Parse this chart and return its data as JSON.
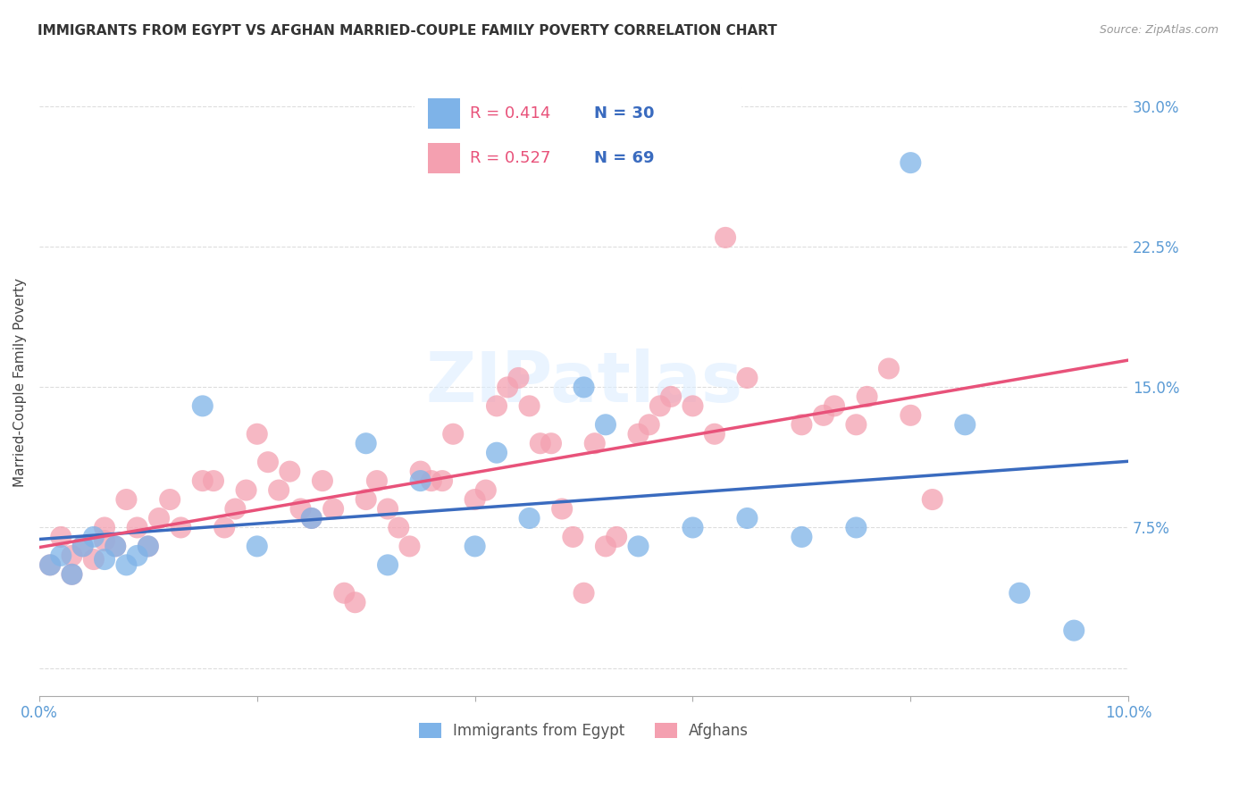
{
  "title": "IMMIGRANTS FROM EGYPT VS AFGHAN MARRIED-COUPLE FAMILY POVERTY CORRELATION CHART",
  "source": "Source: ZipAtlas.com",
  "ylabel": "Married-Couple Family Poverty",
  "xlim": [
    0.0,
    0.1
  ],
  "ylim": [
    -0.015,
    0.32
  ],
  "yticks": [
    0.0,
    0.075,
    0.15,
    0.225,
    0.3
  ],
  "ytick_labels": [
    "",
    "7.5%",
    "15.0%",
    "22.5%",
    "30.0%"
  ],
  "xticks": [
    0.0,
    0.02,
    0.04,
    0.06,
    0.08,
    0.1
  ],
  "xtick_labels": [
    "0.0%",
    "",
    "",
    "",
    "",
    "10.0%"
  ],
  "egypt_color": "#7eb3e8",
  "afghan_color": "#f4a0b0",
  "egypt_line_color": "#3a6bbf",
  "afghan_line_color": "#e8527a",
  "egypt_R": 0.414,
  "egypt_N": 30,
  "afghan_R": 0.527,
  "afghan_N": 69,
  "watermark": "ZIPatlas",
  "background_color": "#ffffff",
  "grid_color": "#dddddd",
  "egypt_x": [
    0.001,
    0.002,
    0.003,
    0.004,
    0.005,
    0.006,
    0.007,
    0.008,
    0.009,
    0.01,
    0.015,
    0.02,
    0.025,
    0.03,
    0.032,
    0.035,
    0.04,
    0.042,
    0.045,
    0.05,
    0.052,
    0.055,
    0.06,
    0.065,
    0.07,
    0.075,
    0.08,
    0.085,
    0.09,
    0.095
  ],
  "egypt_y": [
    0.055,
    0.06,
    0.05,
    0.065,
    0.07,
    0.058,
    0.065,
    0.055,
    0.06,
    0.065,
    0.14,
    0.065,
    0.08,
    0.12,
    0.055,
    0.1,
    0.065,
    0.115,
    0.08,
    0.15,
    0.13,
    0.065,
    0.075,
    0.08,
    0.07,
    0.075,
    0.27,
    0.13,
    0.04,
    0.02
  ],
  "afghan_x": [
    0.001,
    0.002,
    0.003,
    0.003,
    0.004,
    0.005,
    0.006,
    0.006,
    0.007,
    0.008,
    0.009,
    0.01,
    0.011,
    0.012,
    0.013,
    0.015,
    0.016,
    0.017,
    0.018,
    0.019,
    0.02,
    0.021,
    0.022,
    0.023,
    0.024,
    0.025,
    0.026,
    0.027,
    0.028,
    0.029,
    0.03,
    0.031,
    0.032,
    0.033,
    0.034,
    0.035,
    0.036,
    0.037,
    0.038,
    0.04,
    0.041,
    0.042,
    0.043,
    0.044,
    0.045,
    0.046,
    0.047,
    0.048,
    0.049,
    0.05,
    0.051,
    0.052,
    0.053,
    0.055,
    0.056,
    0.057,
    0.058,
    0.06,
    0.062,
    0.063,
    0.065,
    0.07,
    0.072,
    0.073,
    0.075,
    0.076,
    0.078,
    0.08,
    0.082
  ],
  "afghan_y": [
    0.055,
    0.07,
    0.06,
    0.05,
    0.065,
    0.058,
    0.075,
    0.068,
    0.065,
    0.09,
    0.075,
    0.065,
    0.08,
    0.09,
    0.075,
    0.1,
    0.1,
    0.075,
    0.085,
    0.095,
    0.125,
    0.11,
    0.095,
    0.105,
    0.085,
    0.08,
    0.1,
    0.085,
    0.04,
    0.035,
    0.09,
    0.1,
    0.085,
    0.075,
    0.065,
    0.105,
    0.1,
    0.1,
    0.125,
    0.09,
    0.095,
    0.14,
    0.15,
    0.155,
    0.14,
    0.12,
    0.12,
    0.085,
    0.07,
    0.04,
    0.12,
    0.065,
    0.07,
    0.125,
    0.13,
    0.14,
    0.145,
    0.14,
    0.125,
    0.23,
    0.155,
    0.13,
    0.135,
    0.14,
    0.13,
    0.145,
    0.16,
    0.135,
    0.09
  ]
}
